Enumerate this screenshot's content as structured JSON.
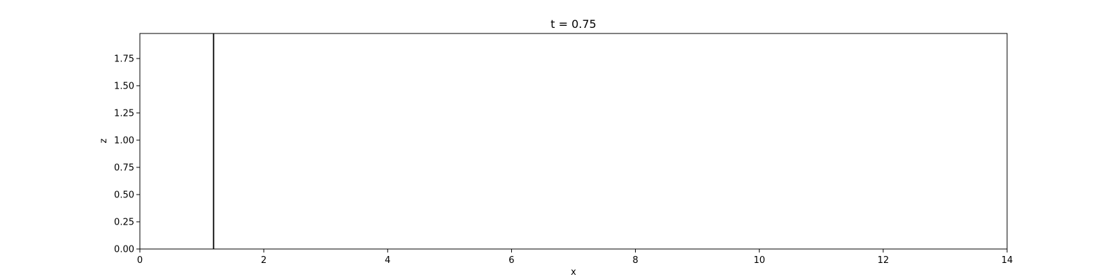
{
  "chart_data": {
    "type": "line",
    "title": "t = 0.75",
    "xlabel": "x",
    "ylabel": "z",
    "xlim": [
      0,
      14
    ],
    "ylim": [
      0,
      1.98
    ],
    "x_ticks": [
      0,
      2,
      4,
      6,
      8,
      10,
      12,
      14
    ],
    "x_tick_labels": [
      "0",
      "2",
      "4",
      "6",
      "8",
      "10",
      "12",
      "14"
    ],
    "y_ticks": [
      0,
      0.25,
      0.5,
      0.75,
      1.0,
      1.25,
      1.5,
      1.75
    ],
    "y_tick_labels": [
      "0.00",
      "0.25",
      "0.50",
      "0.75",
      "1.00",
      "1.25",
      "1.50",
      "1.75"
    ],
    "grid": false,
    "series": [
      {
        "color": "#000000",
        "x": [
          1.19,
          1.19
        ],
        "y": [
          0,
          1.98
        ]
      }
    ]
  }
}
